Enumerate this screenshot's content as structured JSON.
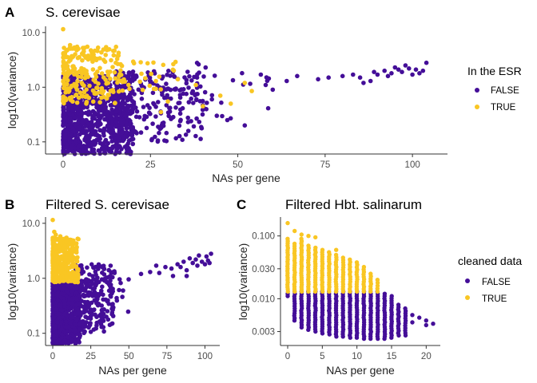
{
  "colors": {
    "false": "#440E98",
    "true": "#F9C623"
  },
  "chart_data": [
    {
      "type": "scatter",
      "panel_label": "A",
      "title": "S. cerevisae",
      "xlabel": "NAs per gene",
      "ylabel": "log10(variance)",
      "x_scale": "linear",
      "y_scale": "log10",
      "xlim": [
        0,
        105
      ],
      "ylim": [
        0.06,
        13
      ],
      "x_ticks": [
        0,
        25,
        50,
        75,
        100
      ],
      "x_tick_labels": [
        "0",
        "25",
        "50",
        "75",
        "100"
      ],
      "y_ticks": [
        0.1,
        1,
        10
      ],
      "y_tick_labels": [
        "0.1",
        "1.0",
        "10.0"
      ],
      "grid": false,
      "legend": {
        "title": "In the ESR",
        "placement": "right",
        "entries": [
          "FALSE",
          "TRUE"
        ]
      },
      "series": [
        {
          "name": "FALSE",
          "group": "false",
          "clusters": [
            {
              "x_range": [
                0,
                20
              ],
              "y_range": [
                0.06,
                1.6
              ],
              "n": 900
            },
            {
              "x_range": [
                15,
                40
              ],
              "y_range": [
                0.1,
                2.0
              ],
              "n": 260
            },
            {
              "x_range": [
                38,
                60
              ],
              "y_range": [
                0.2,
                3.0
              ],
              "n": 28
            }
          ],
          "points": [
            [
              58,
              1.1
            ],
            [
              64,
              1.3
            ],
            [
              67,
              1.6
            ],
            [
              73,
              1.4
            ],
            [
              76,
              1.5
            ],
            [
              80,
              1.6
            ],
            [
              83,
              1.7
            ],
            [
              85,
              1.5
            ],
            [
              88,
              1.3
            ],
            [
              89,
              1.9
            ],
            [
              90,
              1.7
            ],
            [
              92,
              2.0
            ],
            [
              94,
              1.8
            ],
            [
              95,
              2.3
            ],
            [
              96,
              2.1
            ],
            [
              97,
              1.9
            ],
            [
              98,
              2.5
            ],
            [
              99,
              2.2
            ],
            [
              100,
              1.7
            ],
            [
              101,
              2.1
            ],
            [
              102,
              1.8
            ],
            [
              103,
              2.0
            ],
            [
              104,
              2.8
            ],
            [
              44,
              0.3
            ],
            [
              47,
              0.25
            ],
            [
              52,
              0.2
            ],
            [
              60,
              0.9
            ],
            [
              86,
              1.2
            ],
            [
              93,
              1.6
            ]
          ]
        },
        {
          "name": "TRUE",
          "group": "true",
          "clusters": [
            {
              "x_range": [
                0,
                16
              ],
              "y_range": [
                0.5,
                5.5
              ],
              "n": 230
            },
            {
              "x_range": [
                16,
                35
              ],
              "y_range": [
                0.8,
                3.0
              ],
              "n": 35
            }
          ],
          "points": [
            [
              0,
              11.5
            ],
            [
              2,
              5.9
            ],
            [
              4,
              5.5
            ],
            [
              10,
              5.3
            ],
            [
              52,
              1.2
            ],
            [
              54,
              0.85
            ],
            [
              48,
              0.5
            ],
            [
              45,
              0.7
            ],
            [
              40,
              0.45
            ],
            [
              30,
              0.55
            ],
            [
              28,
              0.35
            ],
            [
              38,
              1.1
            ]
          ]
        }
      ]
    },
    {
      "type": "scatter",
      "panel_label": "B",
      "title": "Filtered S. cerevisae",
      "xlabel": "NAs per gene",
      "ylabel": "log10(variance)",
      "x_scale": "linear",
      "y_scale": "log10",
      "xlim": [
        0,
        105
      ],
      "ylim": [
        0.06,
        13
      ],
      "x_ticks": [
        0,
        25,
        50,
        75,
        100
      ],
      "x_tick_labels": [
        "0",
        "25",
        "50",
        "75",
        "100"
      ],
      "y_ticks": [
        0.1,
        1,
        10
      ],
      "y_tick_labels": [
        "0.1",
        "1.0",
        "10.0"
      ],
      "grid": false,
      "series": [
        {
          "name": "FALSE",
          "group": "false",
          "clusters": [
            {
              "x_range": [
                0,
                18
              ],
              "y_range": [
                0.065,
                0.85
              ],
              "n": 900
            },
            {
              "x_range": [
                15,
                40
              ],
              "y_range": [
                0.1,
                1.8
              ],
              "n": 260
            },
            {
              "x_range": [
                38,
                50
              ],
              "y_range": [
                0.2,
                1.5
              ],
              "n": 18
            }
          ],
          "points": [
            [
              58,
              1.2
            ],
            [
              64,
              1.3
            ],
            [
              68,
              1.7
            ],
            [
              74,
              1.6
            ],
            [
              78,
              1.5
            ],
            [
              82,
              1.8
            ],
            [
              84,
              1.6
            ],
            [
              86,
              2.0
            ],
            [
              88,
              1.4
            ],
            [
              90,
              2.3
            ],
            [
              92,
              1.9
            ],
            [
              94,
              2.2
            ],
            [
              95,
              1.7
            ],
            [
              96,
              2.6
            ],
            [
              98,
              2.0
            ],
            [
              100,
              1.8
            ],
            [
              101,
              2.5
            ],
            [
              102,
              2.1
            ],
            [
              103,
              1.9
            ],
            [
              104,
              2.8
            ],
            [
              88,
              1.1
            ],
            [
              70,
              1.25
            ],
            [
              79,
              1.1
            ]
          ]
        },
        {
          "name": "TRUE",
          "group": "true",
          "clusters": [
            {
              "x_range": [
                0,
                17
              ],
              "y_range": [
                0.85,
                5.5
              ],
              "n": 420
            }
          ],
          "points": [
            [
              0,
              11.5
            ],
            [
              2,
              6.2
            ],
            [
              5,
              5.8
            ],
            [
              1,
              7.0
            ]
          ]
        }
      ]
    },
    {
      "type": "scatter",
      "panel_label": "C",
      "title": "Filtered Hbt. salinarum",
      "xlabel": "NAs per gene",
      "ylabel": "log10(variance)",
      "x_scale": "linear",
      "y_scale": "log10",
      "xlim": [
        0,
        21
      ],
      "ylim": [
        0.0018,
        0.2
      ],
      "x_ticks": [
        0,
        5,
        10,
        15,
        20
      ],
      "x_tick_labels": [
        "0",
        "5",
        "10",
        "15",
        "20"
      ],
      "y_ticks": [
        0.003,
        0.01,
        0.03,
        0.1
      ],
      "y_tick_labels": [
        "0.003",
        "0.010",
        "0.030",
        "0.100"
      ],
      "grid": false,
      "legend": {
        "title": "cleaned data",
        "placement": "right",
        "entries": [
          "FALSE",
          "TRUE"
        ]
      },
      "series": [
        {
          "name": "FALSE",
          "group": "false",
          "columns": [
            {
              "x": 1,
              "y_min": 0.0045,
              "y_max": 0.013
            },
            {
              "x": 2,
              "y_min": 0.0035,
              "y_max": 0.013
            },
            {
              "x": 3,
              "y_min": 0.0032,
              "y_max": 0.013
            },
            {
              "x": 4,
              "y_min": 0.003,
              "y_max": 0.013
            },
            {
              "x": 5,
              "y_min": 0.0028,
              "y_max": 0.013
            },
            {
              "x": 6,
              "y_min": 0.0027,
              "y_max": 0.013
            },
            {
              "x": 7,
              "y_min": 0.0025,
              "y_max": 0.013
            },
            {
              "x": 8,
              "y_min": 0.0025,
              "y_max": 0.013
            },
            {
              "x": 9,
              "y_min": 0.0024,
              "y_max": 0.013
            },
            {
              "x": 10,
              "y_min": 0.0024,
              "y_max": 0.013
            },
            {
              "x": 11,
              "y_min": 0.0023,
              "y_max": 0.013
            },
            {
              "x": 12,
              "y_min": 0.0023,
              "y_max": 0.013
            },
            {
              "x": 13,
              "y_min": 0.0023,
              "y_max": 0.013
            },
            {
              "x": 14,
              "y_min": 0.0023,
              "y_max": 0.012
            },
            {
              "x": 15,
              "y_min": 0.0024,
              "y_max": 0.011
            },
            {
              "x": 16,
              "y_min": 0.0026,
              "y_max": 0.008
            },
            {
              "x": 17,
              "y_min": 0.0026,
              "y_max": 0.007
            }
          ],
          "points": [
            [
              0,
              0.011
            ],
            [
              0,
              0.012
            ],
            [
              18,
              0.0042
            ],
            [
              19,
              0.005
            ],
            [
              20,
              0.0038
            ],
            [
              20,
              0.0045
            ],
            [
              21,
              0.004
            ],
            [
              18,
              0.0055
            ]
          ]
        },
        {
          "name": "TRUE",
          "group": "true",
          "columns": [
            {
              "x": 0,
              "y_min": 0.013,
              "y_max": 0.09
            },
            {
              "x": 1,
              "y_min": 0.013,
              "y_max": 0.075
            },
            {
              "x": 2,
              "y_min": 0.013,
              "y_max": 0.09
            },
            {
              "x": 3,
              "y_min": 0.013,
              "y_max": 0.07
            },
            {
              "x": 4,
              "y_min": 0.013,
              "y_max": 0.065
            },
            {
              "x": 5,
              "y_min": 0.013,
              "y_max": 0.06
            },
            {
              "x": 6,
              "y_min": 0.013,
              "y_max": 0.055
            },
            {
              "x": 7,
              "y_min": 0.013,
              "y_max": 0.05
            },
            {
              "x": 8,
              "y_min": 0.013,
              "y_max": 0.045
            },
            {
              "x": 9,
              "y_min": 0.013,
              "y_max": 0.042
            },
            {
              "x": 10,
              "y_min": 0.013,
              "y_max": 0.038
            },
            {
              "x": 11,
              "y_min": 0.013,
              "y_max": 0.032
            },
            {
              "x": 12,
              "y_min": 0.013,
              "y_max": 0.025
            },
            {
              "x": 13,
              "y_min": 0.013,
              "y_max": 0.02
            }
          ],
          "points": [
            [
              0,
              0.16
            ],
            [
              1,
              0.12
            ],
            [
              2,
              0.105
            ],
            [
              3,
              0.1
            ],
            [
              4,
              0.095
            ],
            [
              7,
              0.06
            ]
          ]
        }
      ]
    }
  ]
}
